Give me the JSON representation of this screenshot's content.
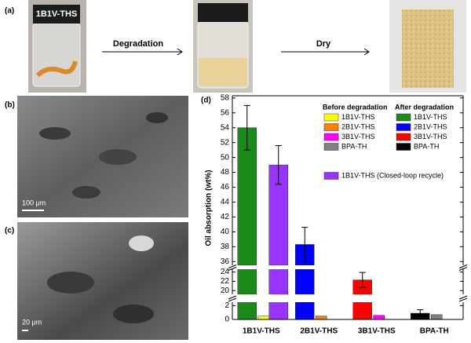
{
  "figure": {
    "panel_labels": [
      "(a)",
      "(b)",
      "(c)",
      "(d)"
    ],
    "vial_label": "1B1V-THS",
    "step_labels": [
      "Degradation",
      "Dry"
    ],
    "scale_bars": [
      "100 μm",
      "20 μm"
    ]
  },
  "chart_data": {
    "type": "bar",
    "y_label": "Oil absorption (wt%)",
    "categories": [
      "1B1V-THS",
      "2B1V-THS",
      "3B1V-THS",
      "BPA-TH"
    ],
    "legend_groups": [
      "Before degradation",
      "After degradation"
    ],
    "series": [
      {
        "name": "1B1V-THS",
        "group": 0,
        "color": "#ffff00",
        "values": [
          0.5,
          null,
          null,
          null
        ]
      },
      {
        "name": "2B1V-THS",
        "group": 0,
        "color": "#ff8000",
        "values": [
          null,
          0.5,
          null,
          null
        ]
      },
      {
        "name": "3B1V-THS",
        "group": 0,
        "color": "#ff00ff",
        "values": [
          null,
          null,
          0.6,
          null
        ]
      },
      {
        "name": "BPA-TH",
        "group": 0,
        "color": "#808080",
        "values": [
          null,
          null,
          null,
          0.7
        ]
      },
      {
        "name": "1B1V-THS",
        "group": 1,
        "color": "#1a8a1a",
        "values": [
          54,
          null,
          null,
          null
        ],
        "errors": [
          3,
          null,
          null,
          null
        ]
      },
      {
        "name": "2B1V-THS",
        "group": 1,
        "color": "#0000ff",
        "values": [
          null,
          38.3,
          null,
          null
        ],
        "errors": [
          null,
          2.3,
          null,
          null
        ]
      },
      {
        "name": "3B1V-THS",
        "group": 1,
        "color": "#ff0000",
        "values": [
          null,
          null,
          22.3,
          null
        ],
        "errors": [
          null,
          null,
          1.6,
          null
        ]
      },
      {
        "name": "BPA-TH",
        "group": 1,
        "color": "#000000",
        "values": [
          null,
          null,
          null,
          0.9
        ],
        "errors": [
          null,
          null,
          null,
          0.5
        ]
      },
      {
        "name": "1B1V-THS (Closed-loop recycle)",
        "color": "#9933ff",
        "values": [
          49,
          null,
          null,
          null
        ],
        "errors": [
          2.6,
          null,
          null,
          null
        ]
      }
    ],
    "y_segments": [
      {
        "ylim": [
          0,
          2.5
        ],
        "yticks": [
          0,
          2
        ]
      },
      {
        "ylim": [
          19.2,
          24.6
        ],
        "yticks": [
          20,
          22,
          24
        ]
      },
      {
        "ylim": [
          35.5,
          58.3
        ],
        "yticks": [
          36,
          38,
          40,
          42,
          44,
          46,
          48,
          50,
          52,
          54,
          56,
          58
        ]
      }
    ]
  }
}
